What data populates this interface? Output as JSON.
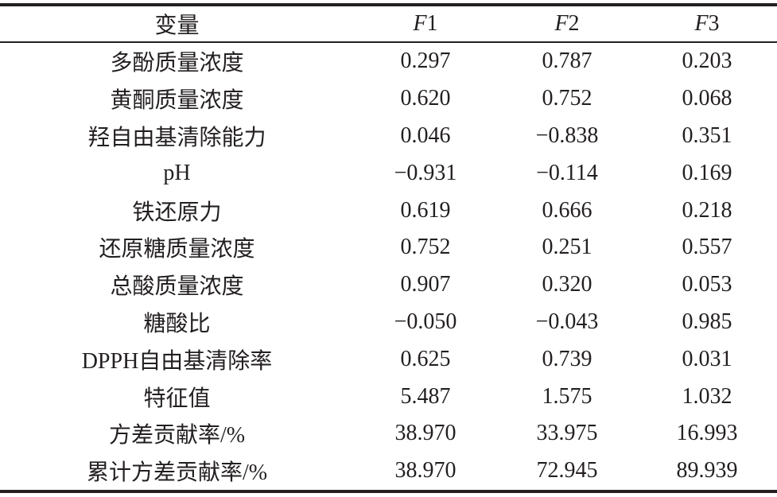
{
  "table": {
    "header": [
      "变量",
      "F1",
      "F2",
      "F3"
    ],
    "rows": [
      [
        "多酚质量浓度",
        "0.297",
        "0.787",
        "0.203"
      ],
      [
        "黄酮质量浓度",
        "0.620",
        "0.752",
        "0.068"
      ],
      [
        "羟自由基清除能力",
        "0.046",
        "−0.838",
        "0.351"
      ],
      [
        "pH",
        "−0.931",
        "−0.114",
        "0.169"
      ],
      [
        "铁还原力",
        "0.619",
        "0.666",
        "0.218"
      ],
      [
        "还原糖质量浓度",
        "0.752",
        "0.251",
        "0.557"
      ],
      [
        "总酸质量浓度",
        "0.907",
        "0.320",
        "0.053"
      ],
      [
        "糖酸比",
        "−0.050",
        "−0.043",
        "0.985"
      ],
      [
        "DPPH自由基清除率",
        "0.625",
        "0.739",
        "0.031"
      ],
      [
        "特征值",
        "5.487",
        "1.575",
        "1.032"
      ],
      [
        "方差贡献率/%",
        "38.970",
        "33.975",
        "16.993"
      ],
      [
        "累计方差贡献率/%",
        "38.970",
        "72.945",
        "89.939"
      ]
    ]
  }
}
